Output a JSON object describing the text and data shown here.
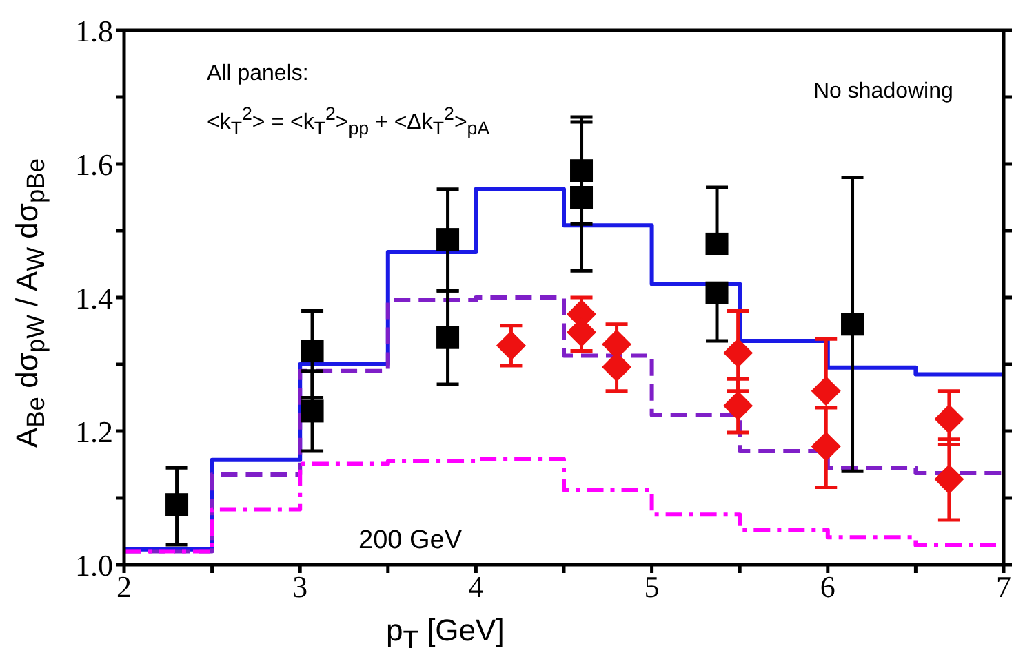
{
  "chart_data": {
    "type": "step",
    "xlabel": "p$_{T}$ [GeV]",
    "ylabel": "A$_{Be}$ dσ$_{pW}$ / A$_{W}$ dσ$_{pBe}$",
    "annotations": [
      "All panels:",
      "<k$_{T}$$^{2}$> = <k$_{T}$$^{2}$>$_{pp}$ + <Δk$_{T}$$^{2}$>$_{pA}$",
      "No shadowing",
      "200 GeV"
    ],
    "xlim": [
      2,
      7
    ],
    "xticks": [
      2,
      {
        "value": 2.5,
        "label": null
      },
      3,
      {
        "value": 3.5,
        "label": null
      },
      4,
      {
        "value": 4.5,
        "label": null
      },
      5,
      {
        "value": 5.5,
        "label": null
      },
      6,
      {
        "value": 6.5,
        "label": null
      },
      7
    ],
    "ylim": [
      1.0,
      1.8
    ],
    "yticks": [
      {
        "value": 1.0,
        "label": "1.0"
      },
      {
        "value": 1.1,
        "label": null
      },
      {
        "value": 1.2,
        "label": "1.2"
      },
      {
        "value": 1.3,
        "label": null
      },
      {
        "value": 1.4,
        "label": "1.4"
      },
      {
        "value": 1.5,
        "label": null
      },
      {
        "value": 1.6,
        "label": "1.6"
      },
      {
        "value": 1.7,
        "label": null
      },
      {
        "value": 1.8,
        "label": "1.8"
      }
    ],
    "grid": false,
    "legend": false,
    "series": [
      {
        "color": "#1a1ae6",
        "line_style": "solid",
        "x": [
          2,
          2.5,
          3,
          3.5,
          4,
          4.5,
          5,
          5.5,
          6,
          6.5,
          7
        ],
        "values": [
          1.023,
          1.157,
          1.3,
          1.468,
          1.562,
          1.508,
          1.42,
          1.335,
          1.295,
          1.285,
          1.285
        ]
      },
      {
        "color": "#7f1fc8",
        "line_style": "dashed",
        "x": [
          2,
          2.5,
          3,
          3.5,
          4,
          4.5,
          5,
          5.5,
          6,
          6.5,
          7
        ],
        "values": [
          1.02,
          1.135,
          1.29,
          1.396,
          1.4,
          1.313,
          1.224,
          1.17,
          1.145,
          1.137,
          1.137
        ]
      },
      {
        "color": "#ff00ff",
        "line_style": "dashdot",
        "x": [
          2,
          2.5,
          3,
          3.5,
          4,
          4.5,
          5,
          5.5,
          6,
          6.5,
          7
        ],
        "values": [
          1.02,
          1.083,
          1.151,
          1.155,
          1.158,
          1.112,
          1.075,
          1.052,
          1.041,
          1.029,
          1.029
        ]
      },
      {
        "type": "scatter",
        "color": "#000000",
        "marker": "square",
        "x": [
          3.07,
          3.84,
          4.6,
          5.37,
          6.14
        ],
        "values": [
          1.23,
          1.34,
          1.55,
          1.48,
          1.36
        ],
        "errors": [
          [
            1.17,
            1.29
          ],
          [
            1.27,
            1.41
          ],
          [
            1.44,
            1.67
          ],
          [
            1.48,
            1.565
          ],
          [
            1.14,
            1.58
          ]
        ]
      },
      {
        "type": "scatter",
        "color": "#000000",
        "marker": "square",
        "x": [
          2.3,
          3.07,
          3.84,
          4.6,
          5.37
        ],
        "values": [
          1.09,
          1.32,
          1.487,
          1.59,
          1.407
        ],
        "errors": [
          [
            1.03,
            1.145
          ],
          [
            1.25,
            1.38
          ],
          [
            1.41,
            1.562
          ],
          [
            1.51,
            1.663
          ],
          [
            1.335,
            1.407
          ]
        ]
      },
      {
        "type": "scatter",
        "color": "#ee1111",
        "marker": "diamond",
        "x": [
          4.6,
          4.8,
          5.49,
          5.99,
          6.69
        ],
        "values": [
          1.375,
          1.296,
          1.238,
          1.177,
          1.218
        ],
        "errors": [
          0.025,
          [
            1.26,
            1.296
          ],
          [
            1.198,
            1.278
          ],
          [
            1.116,
            1.235
          ],
          [
            1.18,
            1.26
          ]
        ]
      },
      {
        "type": "scatter",
        "color": "#ee1111",
        "marker": "diamond",
        "x": [
          4.2,
          4.6,
          4.8,
          5.49,
          5.99,
          6.69
        ],
        "values": [
          1.328,
          1.348,
          1.33,
          1.317,
          1.26,
          1.128
        ],
        "errors": [
          0.03,
          [
            1.32,
            1.348
          ],
          [
            1.33,
            1.36
          ],
          [
            1.26,
            1.38
          ],
          [
            1.26,
            1.338
          ],
          [
            1.067,
            1.188
          ]
        ]
      }
    ]
  }
}
